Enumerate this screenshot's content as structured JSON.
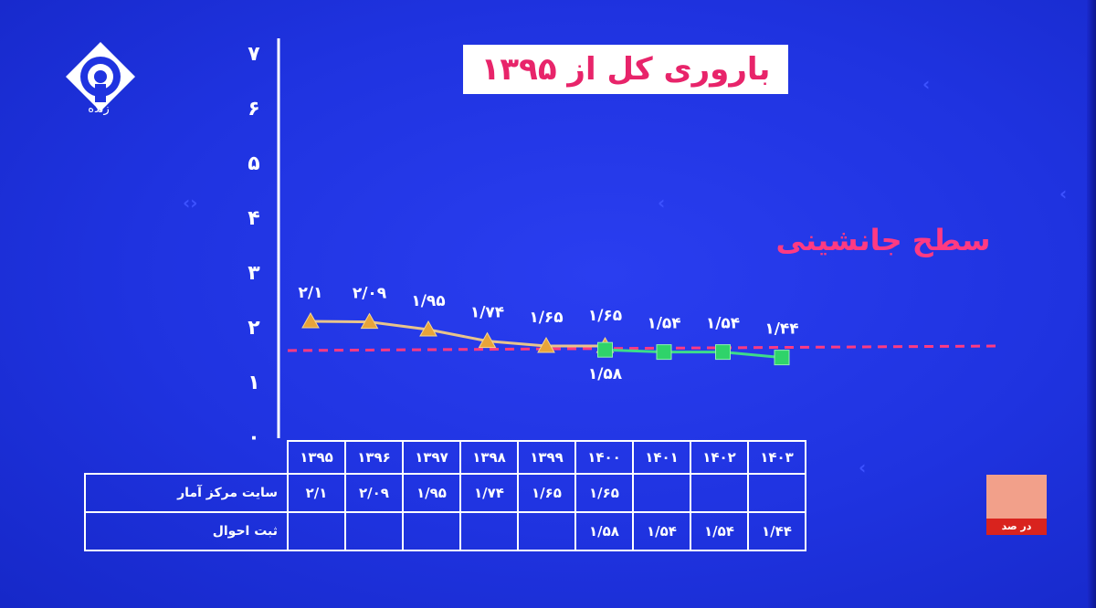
{
  "channel": {
    "logo_caption": "زنده"
  },
  "title": "باروری کل از ۱۳۹۵",
  "colors": {
    "background": "#1f33e0",
    "title_text": "#e8246a",
    "replacement_line": "#ff3a82",
    "series_1": "#e8c48c",
    "series_2": "#3ddc8a"
  },
  "chart_data": {
    "type": "line",
    "title": "باروری کل از ۱۳۹۵",
    "ylim": [
      0,
      7
    ],
    "y_ticks": [
      "۰",
      "۱",
      "۲",
      "۳",
      "۴",
      "۵",
      "۶",
      "۷"
    ],
    "categories": [
      "۱۳۹۵",
      "۱۳۹۶",
      "۱۳۹۷",
      "۱۳۹۸",
      "۱۳۹۹",
      "۱۴۰۰",
      "۱۴۰۱",
      "۱۴۰۲",
      "۱۴۰۳"
    ],
    "series": [
      {
        "name": "سایت مرکز آمار",
        "marker": "triangle",
        "values": [
          2.1,
          2.09,
          1.95,
          1.74,
          1.65,
          1.65,
          null,
          null,
          null
        ],
        "labels": [
          "۲/۱",
          "۲/۰۹",
          "۱/۹۵",
          "۱/۷۴",
          "۱/۶۵",
          "۱/۶۵",
          "",
          "",
          ""
        ]
      },
      {
        "name": "ثبت احوال",
        "marker": "square",
        "values": [
          null,
          null,
          null,
          null,
          null,
          1.58,
          1.54,
          1.54,
          1.44
        ],
        "labels": [
          "",
          "",
          "",
          "",
          "",
          "۱/۵۸",
          "۱/۵۴",
          "۱/۵۴",
          "۱/۴۴"
        ]
      }
    ],
    "reference_line": {
      "value": 2.1,
      "label": "سطح جانشینی"
    },
    "grid": false
  },
  "table": {
    "rows": [
      {
        "label": "سایت مرکز آمار",
        "cells": [
          "۲/۱",
          "۲/۰۹",
          "۱/۹۵",
          "۱/۷۴",
          "۱/۶۵",
          "۱/۶۵",
          "",
          "",
          ""
        ]
      },
      {
        "label": "ثبت احوال",
        "cells": [
          "",
          "",
          "",
          "",
          "",
          "۱/۵۸",
          "۱/۵۴",
          "۱/۵۴",
          "۱/۴۴"
        ]
      }
    ]
  },
  "watermark": {
    "text": "در صد"
  }
}
